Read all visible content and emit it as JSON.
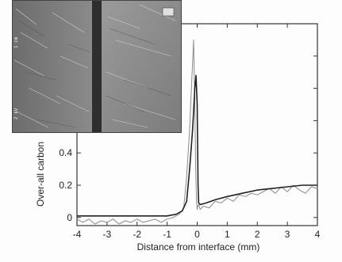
{
  "chart_data": {
    "type": "line",
    "xlabel": "Distance from interface (mm)",
    "ylabel": "Over-all carbon",
    "xlim": [
      -4,
      4
    ],
    "ylim": [
      -0.05,
      1.2
    ],
    "x_ticks": [
      "-4",
      "-3",
      "-2",
      "-1",
      "0",
      "1",
      "2",
      "3",
      "4"
    ],
    "y_ticks": [
      "0",
      "0.2",
      "0.4"
    ],
    "series": [
      {
        "style": "measured-noisy",
        "x": [
          -4.0,
          -3.8,
          -3.6,
          -3.4,
          -3.2,
          -3.0,
          -2.8,
          -2.6,
          -2.4,
          -2.2,
          -2.0,
          -1.8,
          -1.6,
          -1.4,
          -1.2,
          -1.0,
          -0.8,
          -0.6,
          -0.45,
          -0.35,
          -0.25,
          -0.18,
          -0.12,
          -0.08,
          -0.05,
          -0.02,
          0.0,
          0.02,
          0.05,
          0.1,
          0.2,
          0.4,
          0.6,
          0.8,
          1.0,
          1.2,
          1.4,
          1.6,
          1.8,
          2.0,
          2.2,
          2.4,
          2.6,
          2.8,
          3.0,
          3.2,
          3.4,
          3.6,
          3.8,
          4.0
        ],
        "y": [
          -0.01,
          -0.03,
          -0.01,
          -0.04,
          -0.02,
          -0.03,
          -0.01,
          -0.04,
          -0.02,
          -0.03,
          -0.01,
          -0.03,
          -0.02,
          -0.01,
          -0.03,
          -0.01,
          0.0,
          0.02,
          0.06,
          0.25,
          0.55,
          0.85,
          1.1,
          0.7,
          0.3,
          0.1,
          0.05,
          0.07,
          0.08,
          0.05,
          0.07,
          0.06,
          0.1,
          0.09,
          0.12,
          0.1,
          0.14,
          0.13,
          0.15,
          0.14,
          0.16,
          0.18,
          0.15,
          0.19,
          0.16,
          0.2,
          0.17,
          0.15,
          0.19,
          0.18
        ]
      },
      {
        "style": "model-smooth",
        "x": [
          -4.0,
          -3.5,
          -3.0,
          -2.5,
          -2.0,
          -1.5,
          -1.0,
          -0.7,
          -0.5,
          -0.35,
          -0.25,
          -0.15,
          -0.08,
          -0.04,
          0.0,
          0.03,
          0.05,
          0.1,
          0.3,
          0.6,
          1.0,
          1.5,
          2.0,
          2.5,
          3.0,
          3.5,
          4.0
        ],
        "y": [
          0.01,
          0.01,
          0.01,
          0.01,
          0.01,
          0.01,
          0.01,
          0.02,
          0.04,
          0.1,
          0.3,
          0.55,
          0.8,
          0.88,
          0.7,
          0.2,
          0.09,
          0.08,
          0.09,
          0.11,
          0.13,
          0.15,
          0.17,
          0.18,
          0.19,
          0.2,
          0.2
        ]
      }
    ],
    "grid": false,
    "inset": "micrograph-top-left"
  }
}
